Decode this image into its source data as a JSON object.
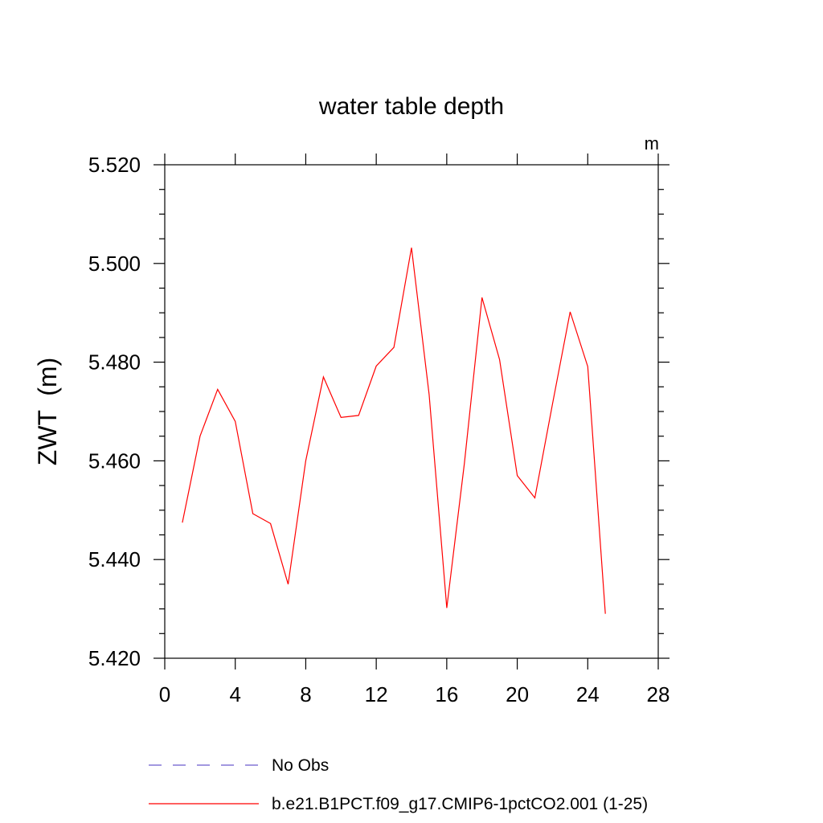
{
  "chart_data": {
    "type": "line",
    "title": "water table depth",
    "units_label": "m",
    "ylabel": "ZWT  (m)",
    "xlabel": "",
    "xlim": [
      0,
      28
    ],
    "ylim": [
      5.42,
      5.52
    ],
    "x_ticks": [
      0,
      4,
      8,
      12,
      16,
      20,
      24,
      28
    ],
    "y_ticks": [
      5.42,
      5.44,
      5.46,
      5.48,
      5.5,
      5.52
    ],
    "x_tick_labels": [
      "0",
      "4",
      "8",
      "12",
      "16",
      "20",
      "24",
      "28"
    ],
    "y_tick_labels": [
      "5.420",
      "5.440",
      "5.460",
      "5.480",
      "5.500",
      "5.520"
    ],
    "grid": false,
    "legend_position": "bottom",
    "series": [
      {
        "name": "No Obs",
        "color": "#6a5acd",
        "dash": "dashed",
        "x": [],
        "y": []
      },
      {
        "name": "b.e21.B1PCT.f09_g17.CMIP6-1pctCO2.001 (1-25)",
        "color": "#ff0000",
        "dash": "solid",
        "x": [
          1,
          2,
          3,
          4,
          5,
          6,
          7,
          8,
          9,
          10,
          11,
          12,
          13,
          14,
          15,
          16,
          17,
          18,
          19,
          20,
          21,
          22,
          23,
          24,
          25
        ],
        "y": [
          5.4475,
          5.465,
          5.4745,
          5.468,
          5.4493,
          5.4473,
          5.435,
          5.46,
          5.477,
          5.4688,
          5.4692,
          5.4792,
          5.483,
          5.5032,
          5.4735,
          5.4302,
          5.4595,
          5.4931,
          5.4805,
          5.457,
          5.4525,
          5.4715,
          5.4902,
          5.4791,
          5.429
        ]
      }
    ]
  }
}
